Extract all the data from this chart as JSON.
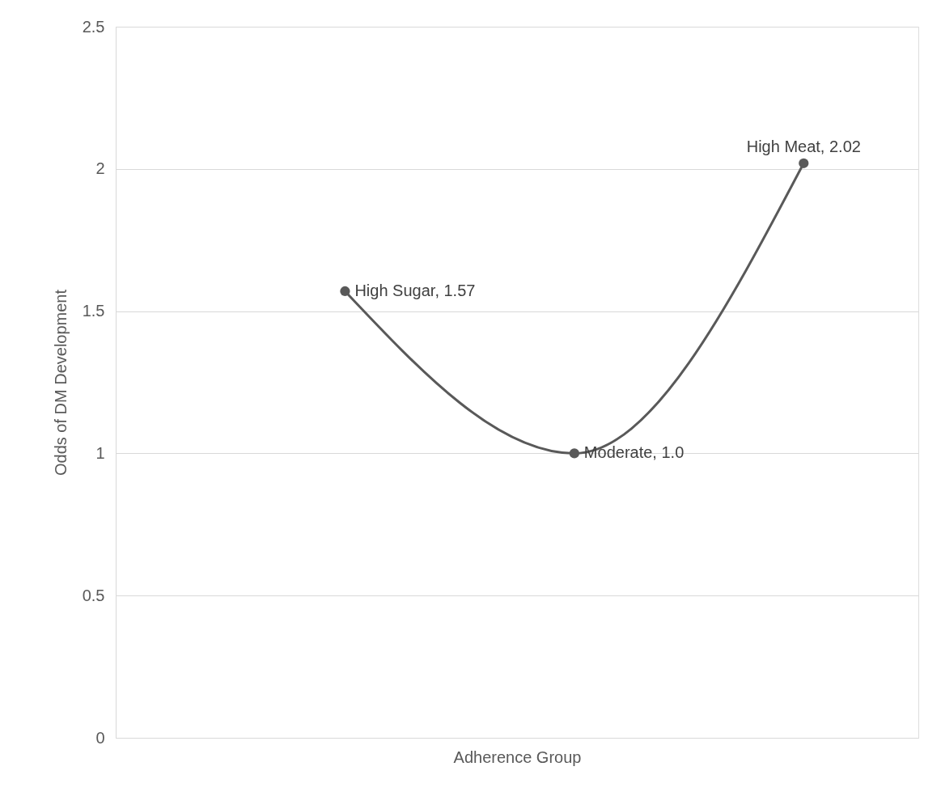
{
  "chart_data": {
    "type": "line",
    "xlabel": "Adherence Group",
    "ylabel": "Odds of DM Development",
    "categories": [
      null,
      null,
      null
    ],
    "series": [
      {
        "color": "#595959",
        "values": [
          1.57,
          1.0,
          2.02
        ],
        "value_labels": [
          "High Sugar, 1.57",
          "Moderate, 1.0",
          "High Meat, 2.02"
        ]
      }
    ],
    "ylim": [
      0,
      2.5
    ],
    "yticks": [
      0,
      0.5,
      1,
      1.5,
      2,
      2.5
    ],
    "grid": "y",
    "marker": "circle",
    "line_style": "solid",
    "tick_labels": "y"
  }
}
